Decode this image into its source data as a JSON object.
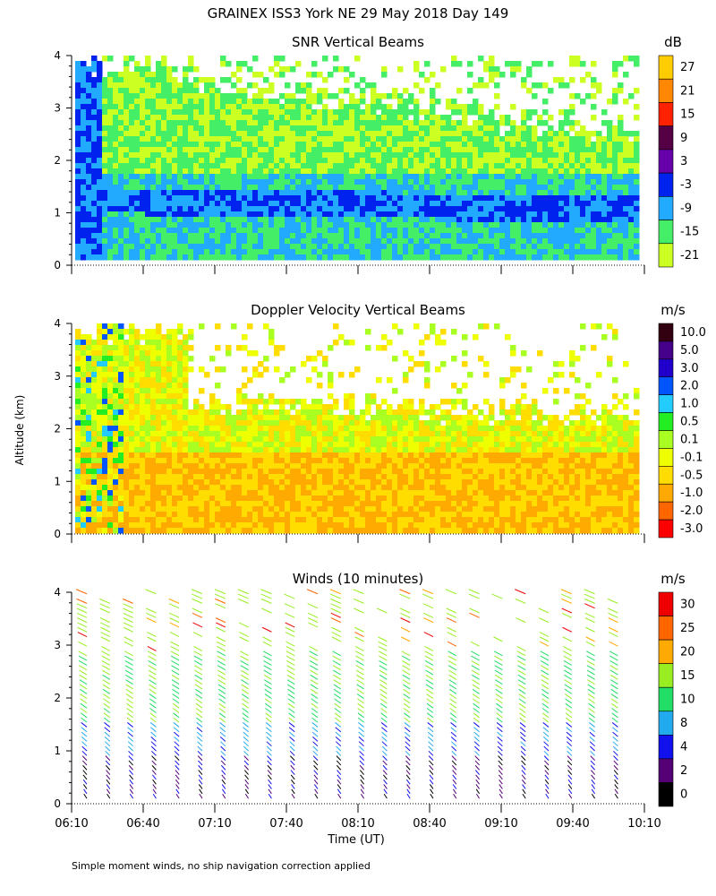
{
  "figure": {
    "title": "GRAINEX ISS3 York NE  29 May 2018 Day 149",
    "ylabel": "Altitude (km)",
    "xlabel": "Time (UT)",
    "footnote": "Simple moment winds, no ship navigation correction applied"
  },
  "chart_data": [
    {
      "type": "heatmap",
      "title": "SNR Vertical Beams",
      "ylabel": "Altitude (km)",
      "xlabel": "Time (UT)",
      "xlim": [
        "06:10",
        "10:10"
      ],
      "ylim": [
        0,
        4
      ],
      "yticks": [
        "0",
        "1",
        "2",
        "3",
        "4"
      ],
      "colorbar": {
        "unit": "dB",
        "labels": [
          "27",
          "21",
          "15",
          "9",
          "3",
          "-3",
          "-9",
          "-15",
          "-21"
        ],
        "colors": [
          "#ffcc00",
          "#ff8800",
          "#ff2200",
          "#550044",
          "#6600aa",
          "#0022ee",
          "#22aaff",
          "#44ee66",
          "#ccff22"
        ]
      },
      "description_values": {
        "strong_layer_alt_km": [
          0.2,
          1.6
        ],
        "fade_alt_km": 2.6
      }
    },
    {
      "type": "heatmap",
      "title": "Doppler Velocity Vertical Beams",
      "ylabel": "Altitude (km)",
      "xlabel": "Time (UT)",
      "xlim": [
        "06:10",
        "10:10"
      ],
      "ylim": [
        0,
        4
      ],
      "yticks": [
        "0",
        "1",
        "2",
        "3",
        "4"
      ],
      "colorbar": {
        "unit": "m/s",
        "labels": [
          "10.0",
          "5.0",
          "3.0",
          "2.0",
          "1.0",
          "0.5",
          "0.1",
          "-0.1",
          "-0.5",
          "-1.0",
          "-2.0",
          "-3.0"
        ],
        "colors": [
          "#330011",
          "#440088",
          "#2200cc",
          "#0055ff",
          "#22ccff",
          "#22ee22",
          "#aaff22",
          "#eeff00",
          "#ffdd00",
          "#ffaa00",
          "#ff6600",
          "#ff0000"
        ]
      }
    },
    {
      "type": "barbs",
      "title": "Winds (10 minutes)",
      "ylabel": "Altitude (km)",
      "xlabel": "Time (UT)",
      "xlim": [
        "06:10",
        "10:10"
      ],
      "ylim": [
        0,
        4
      ],
      "yticks": [
        "0",
        "1",
        "2",
        "3",
        "4"
      ],
      "xticks": [
        "06:10",
        "06:40",
        "07:10",
        "07:40",
        "08:10",
        "08:40",
        "09:10",
        "09:40",
        "10:10"
      ],
      "colorbar": {
        "unit": "m/s",
        "labels": [
          "30",
          "25",
          "20",
          "15",
          "10",
          "8",
          "4",
          "2",
          "0"
        ],
        "colors": [
          "#ee0000",
          "#ff6600",
          "#ffaa00",
          "#99ee22",
          "#22dd66",
          "#22aaee",
          "#1111ee",
          "#550077",
          "#000000"
        ]
      }
    }
  ]
}
